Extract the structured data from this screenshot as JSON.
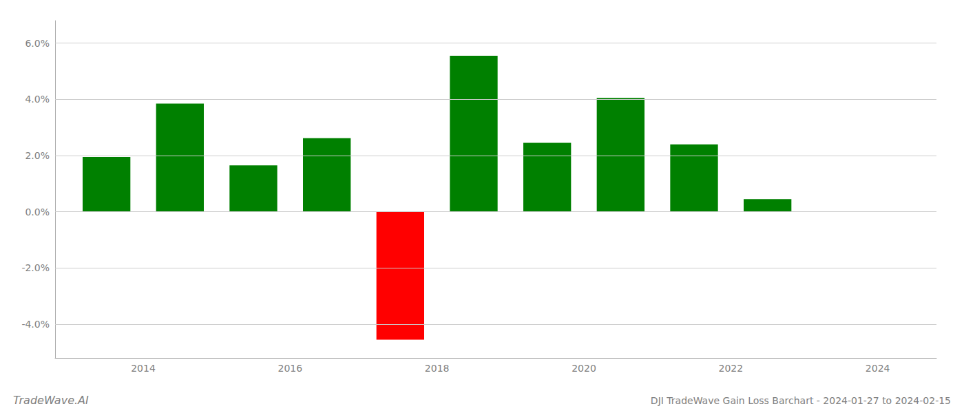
{
  "chart_data": {
    "type": "bar",
    "title": "DJI TradeWave Gain Loss Barchart - 2024-01-27 to 2024-02-15",
    "annotations": [
      "TradeWave.AI"
    ],
    "x": [
      2013.5,
      2014.5,
      2015.5,
      2016.5,
      2017.5,
      2018.5,
      2019.5,
      2020.5,
      2021.5,
      2022.5
    ],
    "values": [
      1.95,
      3.85,
      1.65,
      2.62,
      -4.55,
      5.55,
      2.45,
      4.05,
      2.4,
      0.45
    ],
    "colors": [
      "#008000",
      "#008000",
      "#008000",
      "#008000",
      "#ff0000",
      "#008000",
      "#008000",
      "#008000",
      "#008000",
      "#008000"
    ],
    "xlim": [
      2012.8,
      2024.8
    ],
    "xticks": [
      2014,
      2016,
      2018,
      2020,
      2022,
      2024
    ],
    "ylim": [
      -5.2,
      6.8
    ],
    "yticks": [
      {
        "value": -4.0,
        "label": "-4.0%"
      },
      {
        "value": -2.0,
        "label": "-2.0%"
      },
      {
        "value": 0.0,
        "label": "0.0%"
      },
      {
        "value": 2.0,
        "label": "2.0%"
      },
      {
        "value": 4.0,
        "label": "4.0%"
      },
      {
        "value": 6.0,
        "label": "6.0%"
      }
    ],
    "grid": true
  }
}
